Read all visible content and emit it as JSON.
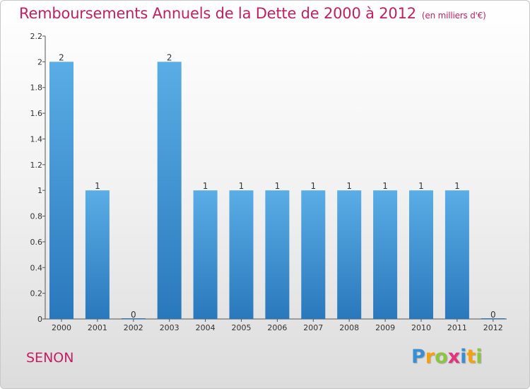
{
  "header": {
    "title": "Remboursements Annuels de la Dette de 2000 à 2012",
    "unit": "(en milliers d'€)"
  },
  "footer": {
    "commune": "SENON",
    "brand": "Proxiti",
    "brand_letters": [
      {
        "char": "P",
        "color": "#3a8fd3"
      },
      {
        "char": "r",
        "color": "#f5a10e"
      },
      {
        "char": "o",
        "color": "#8cc63e"
      },
      {
        "char": "x",
        "color": "#e4327d"
      },
      {
        "char": "i",
        "color": "#3a8fd3"
      },
      {
        "char": "t",
        "color": "#f5a10e"
      },
      {
        "char": "i",
        "color": "#8cc63e"
      }
    ]
  },
  "colors": {
    "accent": "#c41e63",
    "bar_top": "#5aade6",
    "bar_bottom": "#2a78bc"
  },
  "chart_data": {
    "type": "bar",
    "categories": [
      "2000",
      "2001",
      "2002",
      "2003",
      "2004",
      "2005",
      "2006",
      "2007",
      "2008",
      "2009",
      "2010",
      "2011",
      "2012"
    ],
    "values": [
      2,
      1,
      0,
      2,
      1,
      1,
      1,
      1,
      1,
      1,
      1,
      1,
      0
    ],
    "data_labels": [
      "2",
      "1",
      "0",
      "2",
      "1",
      "1",
      "1",
      "1",
      "1",
      "1",
      "1",
      "1",
      "0"
    ],
    "ylim": [
      0,
      2.2
    ],
    "yticks": [
      0,
      0.2,
      0.4,
      0.6,
      0.8,
      1,
      1.2,
      1.4,
      1.6,
      1.8,
      2,
      2.2
    ],
    "ytick_labels": [
      "0",
      "0.2",
      "0.4",
      "0.6",
      "0.8",
      "1",
      "1.2",
      "1.4",
      "1.6",
      "1.8",
      "2",
      "2.2"
    ],
    "grid": false,
    "legend": "none"
  }
}
